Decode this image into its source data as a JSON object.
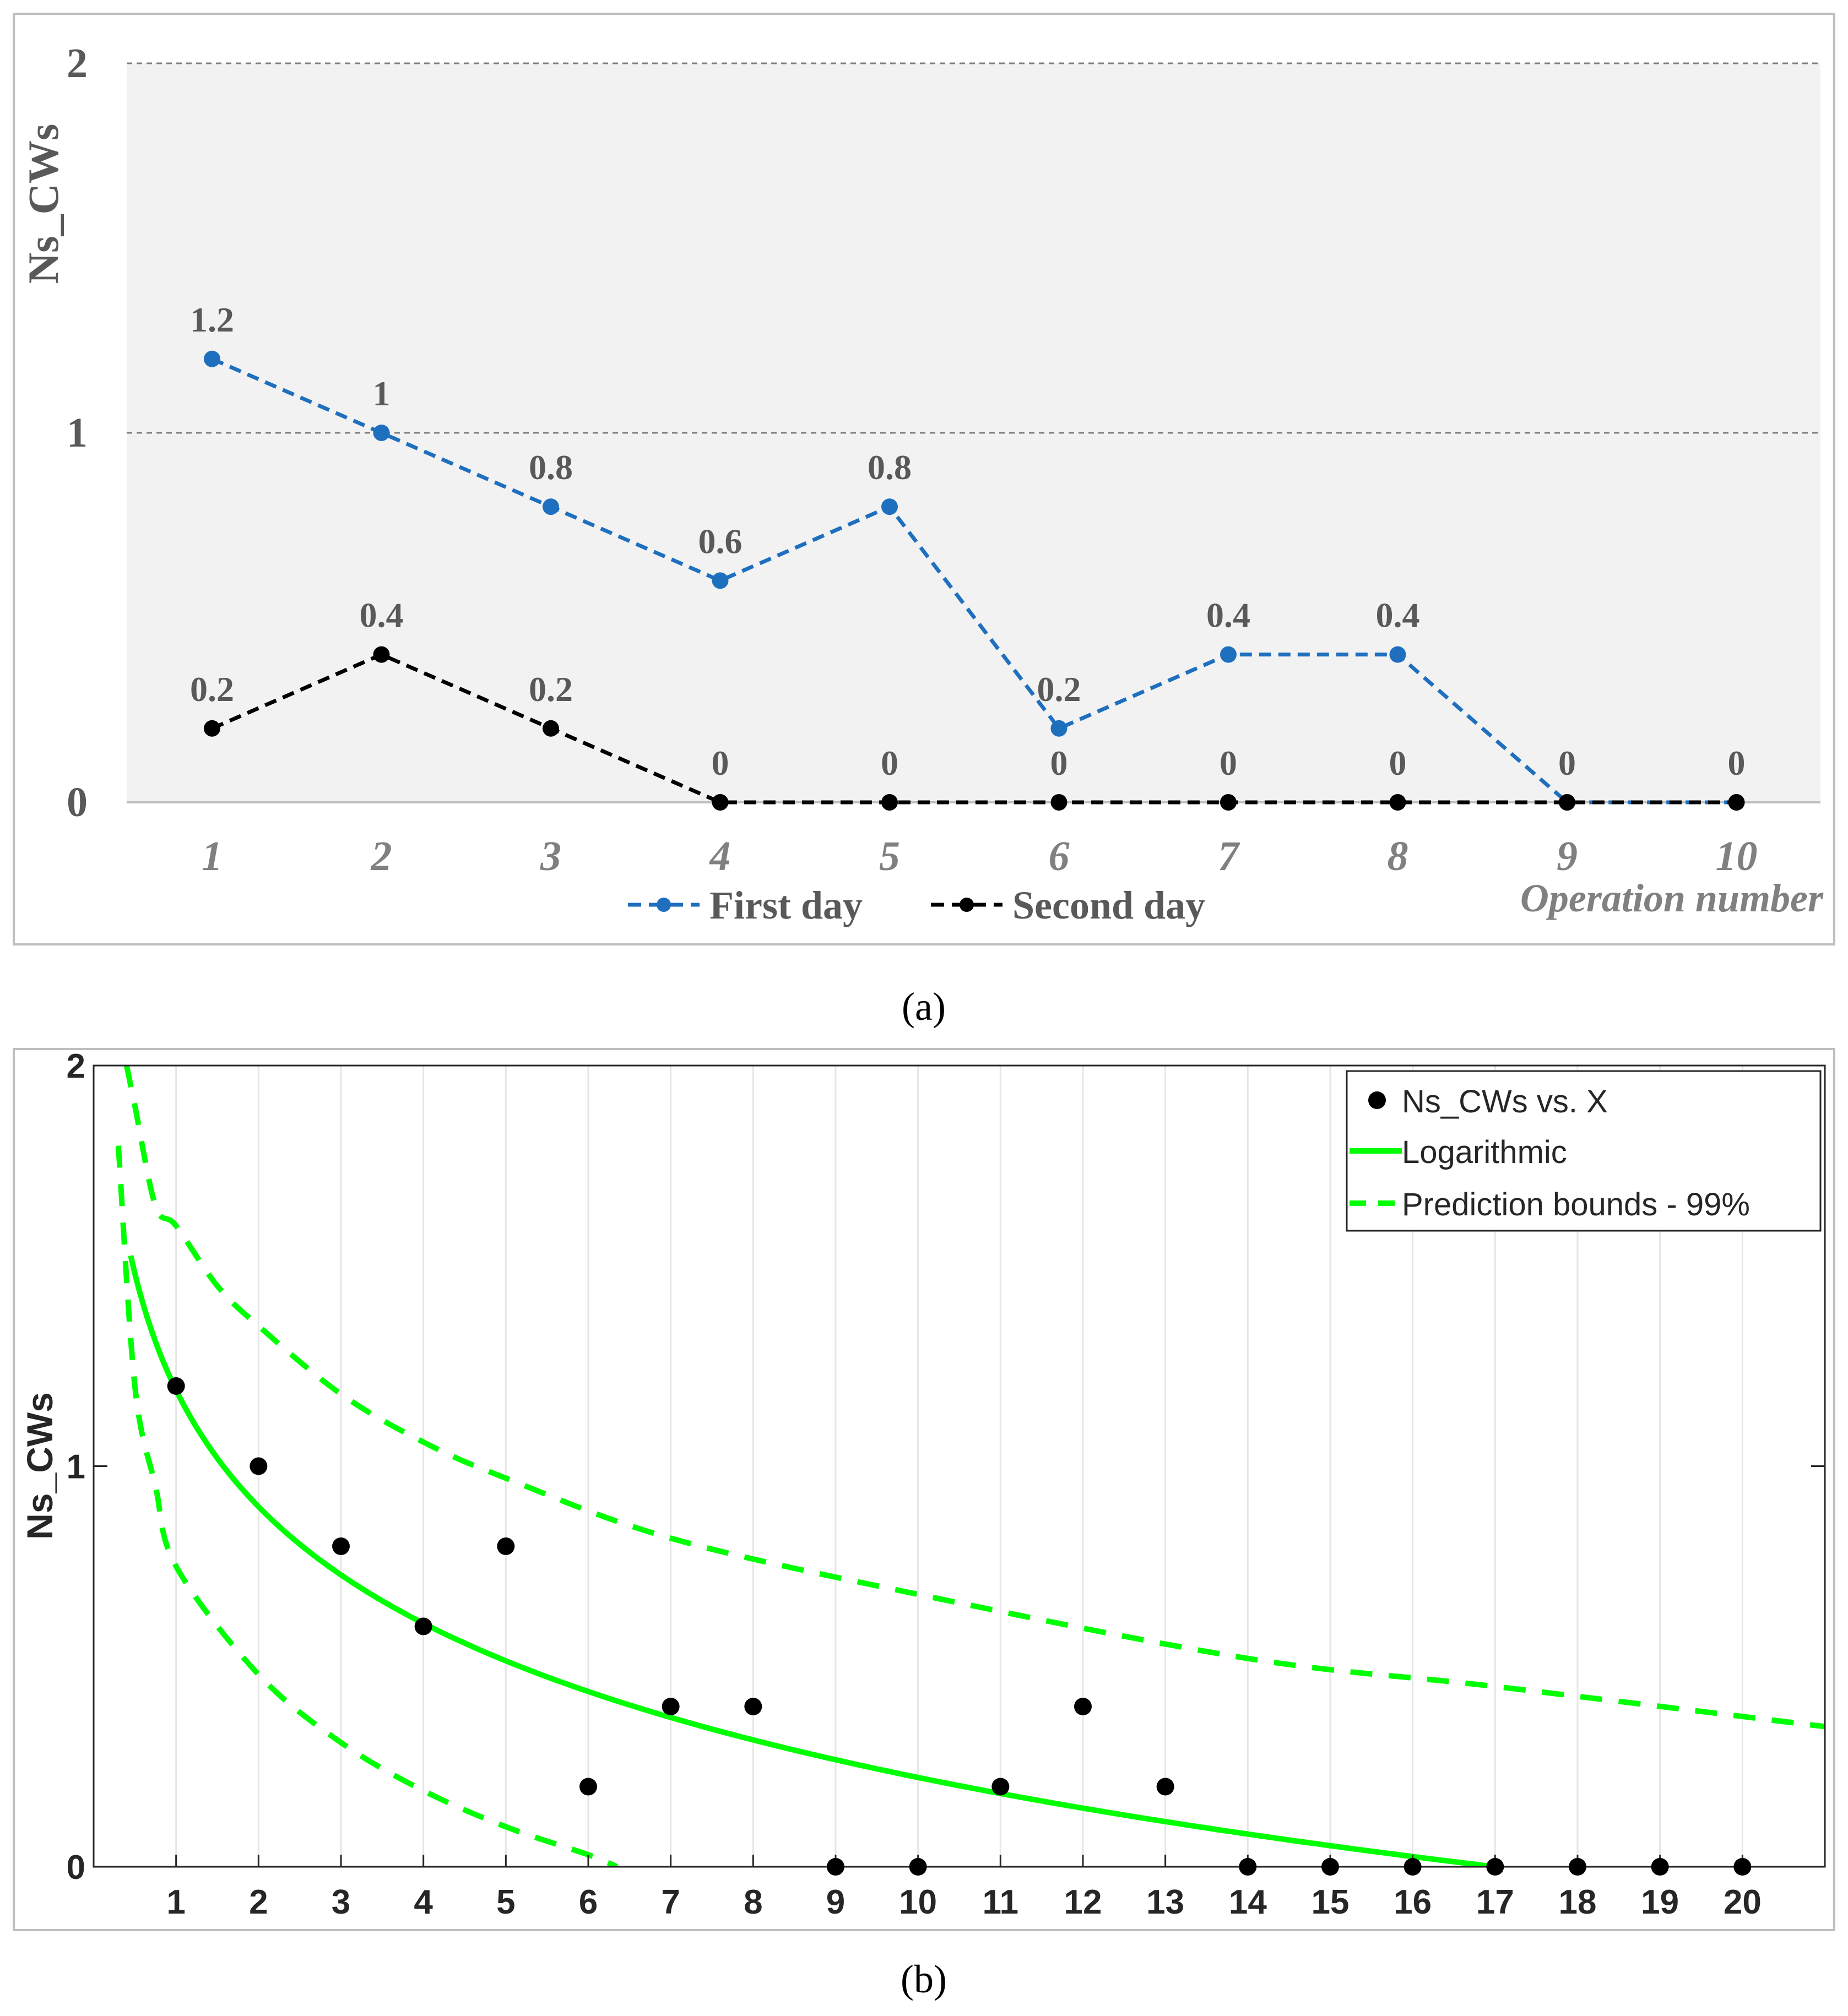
{
  "chart_data": [
    {
      "type": "line",
      "panel_caption": "(a)",
      "ylabel": "Ns_CWs",
      "xlabel": "Operation number",
      "categories": [
        1,
        2,
        3,
        4,
        5,
        6,
        7,
        8,
        9,
        10
      ],
      "x_tick_labels": [
        "1",
        "2",
        "3",
        "4",
        "5",
        "6",
        "7",
        "8",
        "9",
        "10"
      ],
      "y_tick_labels": [
        "0",
        "1",
        "2"
      ],
      "ylim": [
        0,
        2
      ],
      "grid": "horizontal dashed at 1 and 2",
      "legend_position": "bottom-center",
      "colors": {
        "background": "#f2f2f2",
        "first_day": "#1f6fbf",
        "second_day": "#000000",
        "text": "#595959"
      },
      "series": [
        {
          "name": "First day",
          "values": [
            1.2,
            1,
            0.8,
            0.6,
            0.8,
            0.2,
            0.4,
            0.4,
            0,
            0
          ],
          "labels": [
            "1.2",
            "1",
            "0.8",
            "0.6",
            "0.8",
            "0.2",
            "0.4",
            "0.4",
            "",
            ""
          ]
        },
        {
          "name": "Second day",
          "values": [
            0.2,
            0.4,
            0.2,
            0,
            0,
            0,
            0,
            0,
            0,
            0
          ],
          "labels": [
            "0.2",
            "0.4",
            "0.2",
            "0",
            "0",
            "0",
            "0",
            "0",
            "0",
            "0"
          ]
        }
      ]
    },
    {
      "type": "scatter",
      "panel_caption": "(b)",
      "ylabel": "Ns_CWs",
      "xlabel": "",
      "xlim": [
        0,
        21
      ],
      "ylim": [
        0,
        2
      ],
      "x_tick_labels": [
        "1",
        "2",
        "3",
        "4",
        "5",
        "6",
        "7",
        "8",
        "9",
        "10",
        "11",
        "12",
        "13",
        "14",
        "15",
        "16",
        "17",
        "18",
        "19",
        "20"
      ],
      "y_tick_labels": [
        "0",
        "1",
        "2"
      ],
      "grid": "vertical at every integer x",
      "legend_position": "top-right",
      "colors": {
        "points": "#000000",
        "fit": "#00ff00"
      },
      "points": {
        "name": "Ns_CWs vs. X",
        "x": [
          1,
          2,
          3,
          4,
          5,
          6,
          7,
          8,
          9,
          10,
          11,
          12,
          13,
          14,
          15,
          16,
          17,
          18,
          19,
          20
        ],
        "y": [
          1.2,
          1,
          0.8,
          0.6,
          0.8,
          0.2,
          0.4,
          0.4,
          0,
          0,
          0.2,
          0.4,
          0.2,
          0,
          0,
          0,
          0,
          0,
          0,
          0
        ]
      },
      "fit": {
        "name": "Logarithmic",
        "model": "y = a - b*ln(x)",
        "a": 1.19,
        "b": 0.42
      },
      "bounds": {
        "name": "Prediction bounds - 99%",
        "upper": {
          "x": [
            0.4,
            0.5,
            0.75,
            1,
            1.5,
            2,
            3,
            4,
            5,
            7,
            10,
            14,
            17,
            21
          ],
          "y": [
            2.0,
            1.9,
            1.65,
            1.6,
            1.45,
            1.35,
            1.18,
            1.06,
            0.97,
            0.82,
            0.68,
            0.52,
            0.45,
            0.35
          ]
        },
        "lower": {
          "x": [
            0.3,
            0.5,
            0.75,
            1,
            2,
            3,
            4,
            5,
            6,
            6.35
          ],
          "y": [
            1.8,
            1.2,
            0.95,
            0.75,
            0.48,
            0.31,
            0.19,
            0.1,
            0.03,
            0
          ]
        }
      }
    }
  ]
}
